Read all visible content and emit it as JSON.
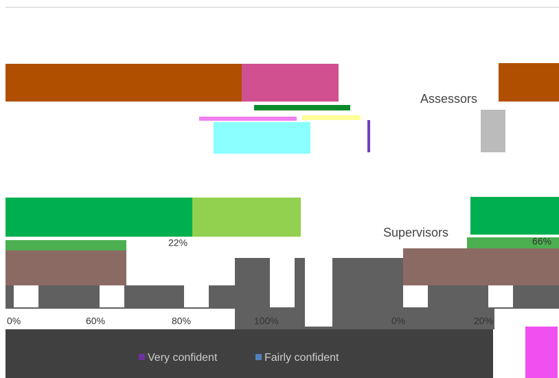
{
  "labels": {
    "assessors": "Assessors",
    "supervisors": "Supervisors"
  },
  "value_texts": {
    "supervisors_right": "66%",
    "supervisors_left": "22%"
  },
  "axis_texts": [
    "0%",
    "60%",
    "80%",
    "100%",
    "0%",
    "20%"
  ],
  "legend": [
    "Very confident",
    "Fairly confident"
  ]
}
